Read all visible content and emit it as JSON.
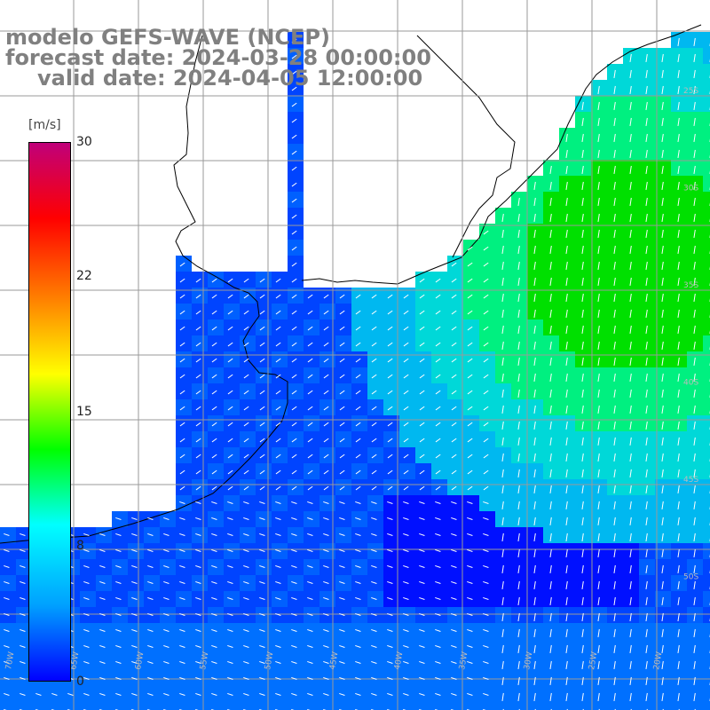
{
  "header": {
    "model": "modelo GEFS-WAVE (NCEP)",
    "forecast": "forecast date: 2024-03-28 00:00:00",
    "valid": "valid date: 2024-04-05 12:00:00"
  },
  "colorbar": {
    "unit": "[m/s]",
    "ticks": [
      "30",
      "22",
      "15",
      "8",
      "0"
    ],
    "colors": [
      "#0000ff",
      "#00a0ff",
      "#00ffff",
      "#00ff00",
      "#ffff00",
      "#ff8000",
      "#ff0000",
      "#c0007a"
    ]
  },
  "map": {
    "lon_labels": [
      "70W",
      "65W",
      "60W",
      "55W",
      "50W",
      "45W",
      "40W",
      "35W",
      "30W",
      "25W",
      "20W"
    ],
    "lat_labels": [
      "25S",
      "30S",
      "35S",
      "40S",
      "45S",
      "50S"
    ],
    "land_color": "#ffffff",
    "grid_color": "#9a9a9a"
  }
}
